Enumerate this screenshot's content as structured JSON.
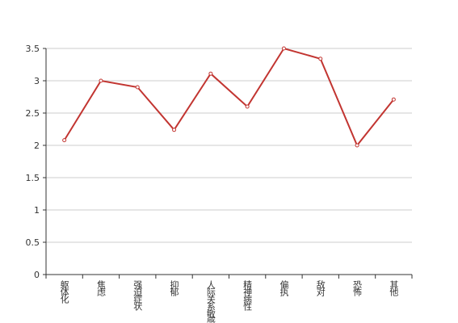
{
  "chart_data": {
    "type": "line",
    "categories": [
      "躯体化",
      "焦虑",
      "强迫症状",
      "抑郁",
      "人际关系敏感",
      "精神病性",
      "偏执",
      "敌对",
      "恐怖",
      "其他"
    ],
    "values": [
      2.08,
      3.0,
      2.9,
      2.24,
      3.11,
      2.6,
      3.5,
      3.34,
      2.0,
      2.71
    ],
    "color": "#c23531",
    "ylim": [
      0,
      3.5
    ],
    "yticks": [
      0,
      0.5,
      1,
      1.5,
      2,
      2.5,
      3,
      3.5
    ],
    "grid": true
  }
}
